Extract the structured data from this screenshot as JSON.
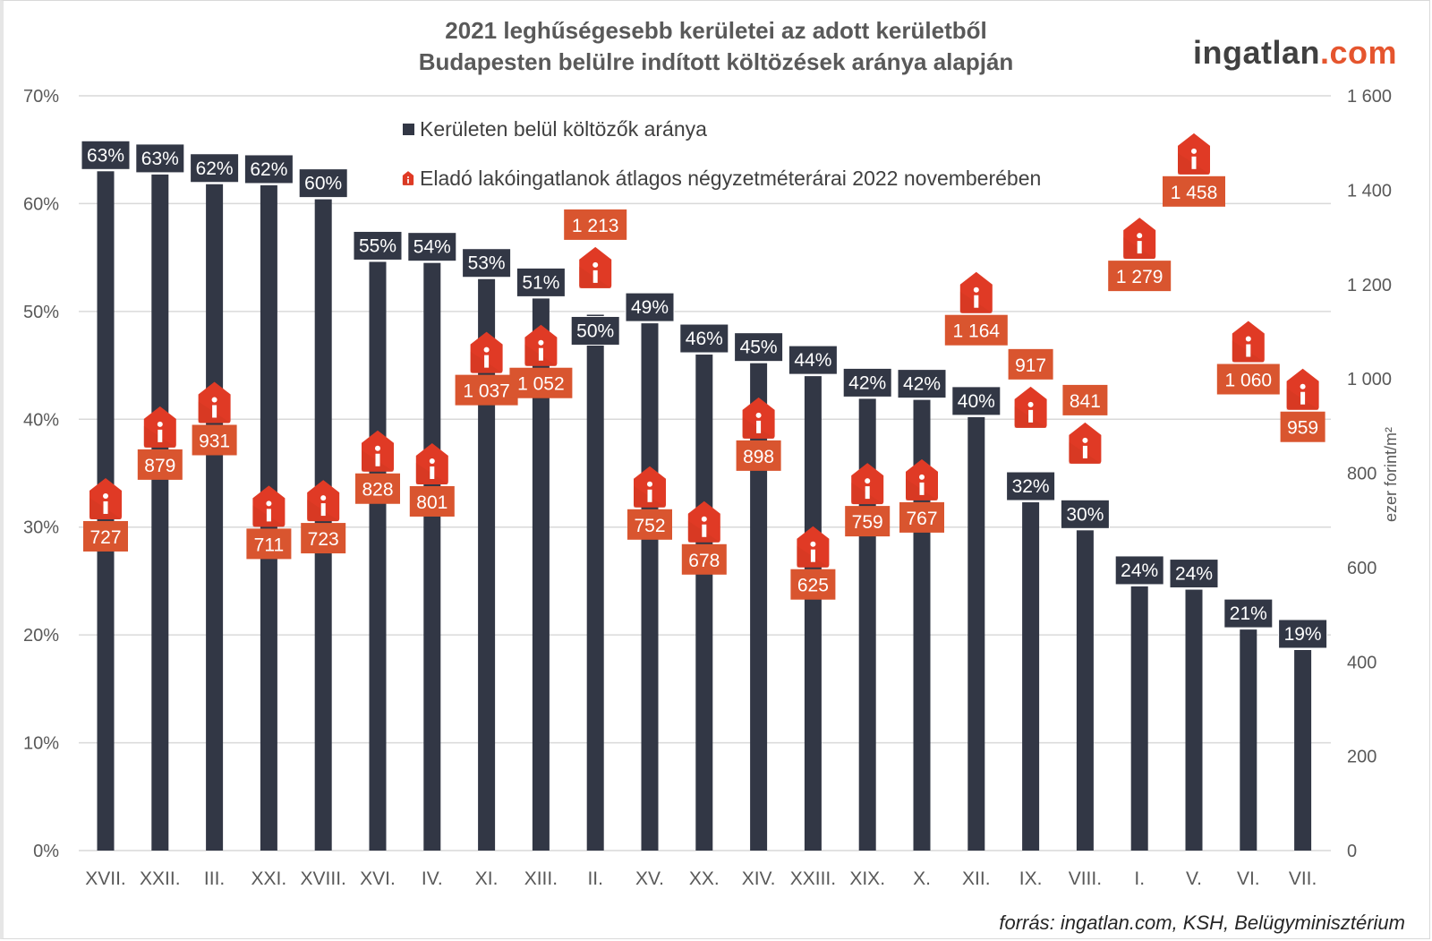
{
  "header": {
    "title_line1": "2021 leghűségesebb kerületei az adott kerületből",
    "title_line2": "Budapesten belülre indított költözések aránya alapján",
    "logo_main": "ingatlan",
    "logo_suffix": ".com"
  },
  "footer": {
    "source": "forrás: ingatlan.com, KSH, Belügyminisztérium"
  },
  "colors": {
    "bar": "#323745",
    "price_marker": "#e03a25",
    "price_label": "#d9552f",
    "grid": "#d9d9d9",
    "logo_accent": "#e5552e"
  },
  "chart_data": {
    "type": "bar",
    "title": "2021 leghűségesebb kerületei az adott kerületből Budapesten belülre indított költözések aránya alapján",
    "xlabel": "",
    "ylabel": "",
    "y2label": "ezer forint/m²",
    "ylim": [
      0,
      70
    ],
    "y2lim": [
      0,
      1600
    ],
    "yticks": [
      "0%",
      "10%",
      "20%",
      "30%",
      "40%",
      "50%",
      "60%",
      "70%"
    ],
    "ytick_values": [
      0,
      10,
      20,
      30,
      40,
      50,
      60,
      70
    ],
    "y2ticks": [
      "0",
      "200",
      "400",
      "600",
      "800",
      "1 000",
      "1 200",
      "1 400",
      "1 600"
    ],
    "y2tick_values": [
      0,
      200,
      400,
      600,
      800,
      1000,
      1200,
      1400,
      1600
    ],
    "grid": true,
    "legend_position": "top-center",
    "categories": [
      "XVII.",
      "XXII.",
      "III.",
      "XXI.",
      "XVIII.",
      "XVI.",
      "IV.",
      "XI.",
      "XIII.",
      "II.",
      "XV.",
      "XX.",
      "XIV.",
      "XXIII.",
      "XIX.",
      "X.",
      "XII.",
      "IX.",
      "VIII.",
      "I.",
      "V.",
      "VI.",
      "VII."
    ],
    "series": [
      {
        "name": "Kerületen belül költözők aránya",
        "type": "bar",
        "axis": "left",
        "values": [
          63,
          62.7,
          61.8,
          61.7,
          60.4,
          54.6,
          54.5,
          53,
          51.2,
          49.7,
          48.9,
          46,
          45.2,
          44,
          41.9,
          41.8,
          40.2,
          32.3,
          29.7,
          24.5,
          24.2,
          20.5,
          18.6
        ],
        "labels": [
          "63%",
          "63%",
          "62%",
          "62%",
          "60%",
          "55%",
          "54%",
          "53%",
          "51%",
          "50%",
          "49%",
          "46%",
          "45%",
          "44%",
          "42%",
          "42%",
          "40%",
          "32%",
          "30%",
          "24%",
          "24%",
          "21%",
          "19%"
        ]
      },
      {
        "name": "Eladó lakóingatlanok átlagos négyzetméterárai 2022 novemberében",
        "type": "marker",
        "axis": "right",
        "values": [
          727,
          879,
          931,
          711,
          723,
          828,
          801,
          1037,
          1052,
          1213,
          752,
          678,
          898,
          625,
          759,
          767,
          1164,
          917,
          841,
          1279,
          1458,
          1060,
          959
        ],
        "labels": [
          "727",
          "879",
          "931",
          "711",
          "723",
          "828",
          "801",
          "1 037",
          "1 052",
          "1 213",
          "752",
          "678",
          "898",
          "625",
          "759",
          "767",
          "1 164",
          "917",
          "841",
          "1 279",
          "1 458",
          "1 060",
          "959"
        ],
        "label_above": [
          false,
          false,
          false,
          false,
          false,
          false,
          false,
          false,
          false,
          true,
          false,
          false,
          false,
          false,
          false,
          false,
          false,
          true,
          true,
          false,
          false,
          false,
          false
        ]
      }
    ]
  }
}
